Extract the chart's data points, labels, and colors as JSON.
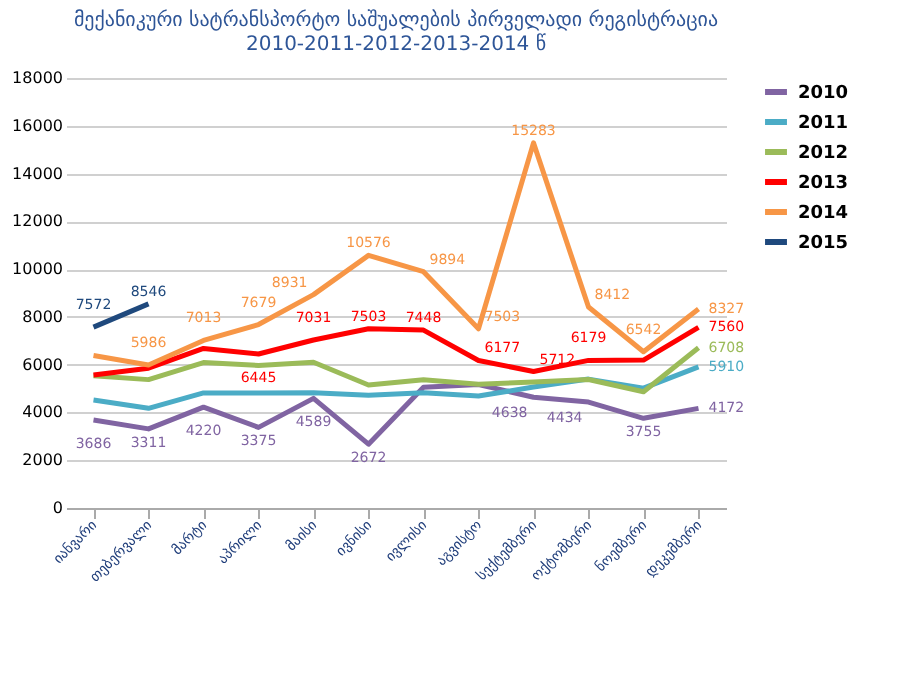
{
  "chart_data": {
    "type": "line",
    "title": [
      "მექანიკური სატრანსპორტო საშუალების პირველადი რეგისტრაცია",
      "2010-2011-2012-2013-2014 წ"
    ],
    "categories": [
      "იანვარი",
      "თებერვალი",
      "მარტი",
      "აპრილი",
      "მაისი",
      "ივნისი",
      "ივლისი",
      "აგვისტო",
      "სექტემბერი",
      "ოქტომბერი",
      "ნოემბერი",
      "დეკემბერი"
    ],
    "series": [
      {
        "name": "2010",
        "color": "#8064a2",
        "values": [
          3686,
          3311,
          4220,
          3375,
          4589,
          2672,
          5054,
          5170,
          4638,
          4434,
          3755,
          4172
        ],
        "value_labels": [
          "3686",
          "3311",
          "4220",
          "3375",
          "4589",
          "2672",
          null,
          null,
          "4638",
          "4434",
          "3755",
          "4172"
        ]
      },
      {
        "name": "2011",
        "color": "#4bacc6",
        "values": [
          4523,
          4174,
          4819,
          4810,
          4827,
          4716,
          4828,
          4689,
          5062,
          5396,
          5018,
          5910
        ],
        "value_labels": [
          null,
          null,
          null,
          null,
          null,
          null,
          null,
          null,
          null,
          null,
          null,
          "5910"
        ]
      },
      {
        "name": "2012",
        "color": "#9bbb59",
        "values": [
          5539,
          5374,
          6090,
          5968,
          6099,
          5148,
          5365,
          5179,
          5278,
          5379,
          4868,
          6708
        ],
        "value_labels": [
          null,
          null,
          null,
          null,
          null,
          null,
          null,
          null,
          null,
          null,
          null,
          "6708"
        ]
      },
      {
        "name": "2013",
        "color": "#ff0000",
        "values": [
          5571,
          5851,
          6680,
          6445,
          7031,
          7503,
          7448,
          6177,
          5712,
          6179,
          6191,
          7560
        ],
        "value_labels": [
          null,
          null,
          null,
          "6445",
          "7031",
          "7503",
          "7448",
          "6177",
          "5712",
          "6179",
          null,
          "7560"
        ]
      },
      {
        "name": "2014",
        "color": "#f79646",
        "values": [
          6386,
          5986,
          7013,
          7679,
          8931,
          10576,
          9894,
          7503,
          15283,
          8412,
          6542,
          8327
        ],
        "value_labels": [
          null,
          "5986",
          "7013",
          "7679",
          "8931",
          "10576",
          "9894",
          "7503",
          "15283",
          "8412",
          "6542",
          "8327"
        ]
      },
      {
        "name": "2015",
        "color": "#1f497d",
        "values": [
          7572,
          8546,
          null,
          null,
          null,
          null,
          null,
          null,
          null,
          null,
          null,
          null
        ],
        "value_labels": [
          "7572",
          "8546",
          null,
          null,
          null,
          null,
          null,
          null,
          null,
          null,
          null,
          null
        ]
      }
    ],
    "ylim": [
      0,
      18000
    ],
    "yticks": [
      0,
      2000,
      4000,
      6000,
      8000,
      10000,
      12000,
      14000,
      16000,
      18000
    ],
    "grid": "y",
    "legend": "right",
    "marker": "none",
    "line_style": "solid"
  }
}
